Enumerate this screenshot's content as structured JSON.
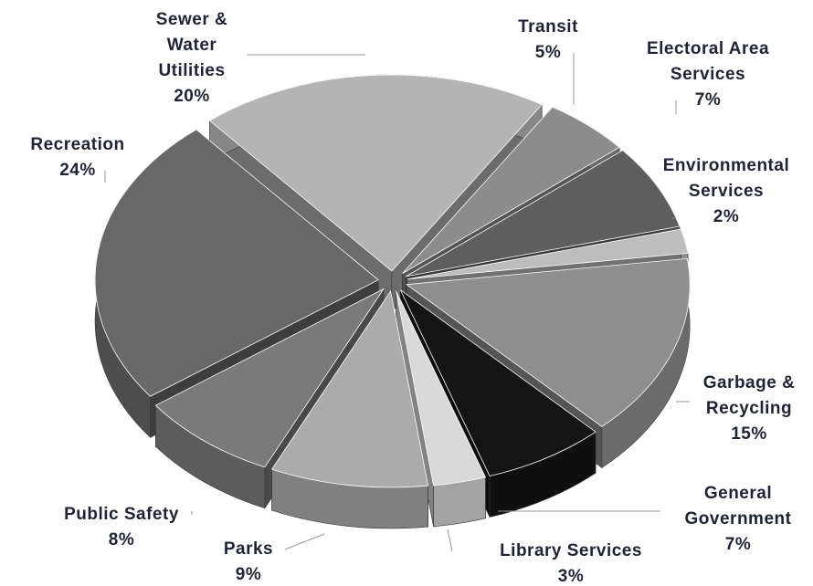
{
  "chart_data": {
    "type": "pie3d",
    "categories": [
      "Sewer & Water Utilities",
      "Transit",
      "Electoral Area Services",
      "Environmental Services",
      "Garbage & Recycling",
      "General Government",
      "Library Services",
      "Parks",
      "Public Safety",
      "Recreation"
    ],
    "values": [
      20,
      5,
      7,
      2,
      15,
      7,
      3,
      9,
      8,
      24
    ],
    "value_labels": [
      "20%",
      "5%",
      "7%",
      "2%",
      "15%",
      "7%",
      "3%",
      "9%",
      "8%",
      "24%"
    ],
    "colors": [
      "#b4b4b4",
      "#8c8c8c",
      "#5e5e5e",
      "#bdbdbd",
      "#8e8e8e",
      "#141414",
      "#d9d9d9",
      "#ababab",
      "#7a7a7a",
      "#686868"
    ]
  }
}
